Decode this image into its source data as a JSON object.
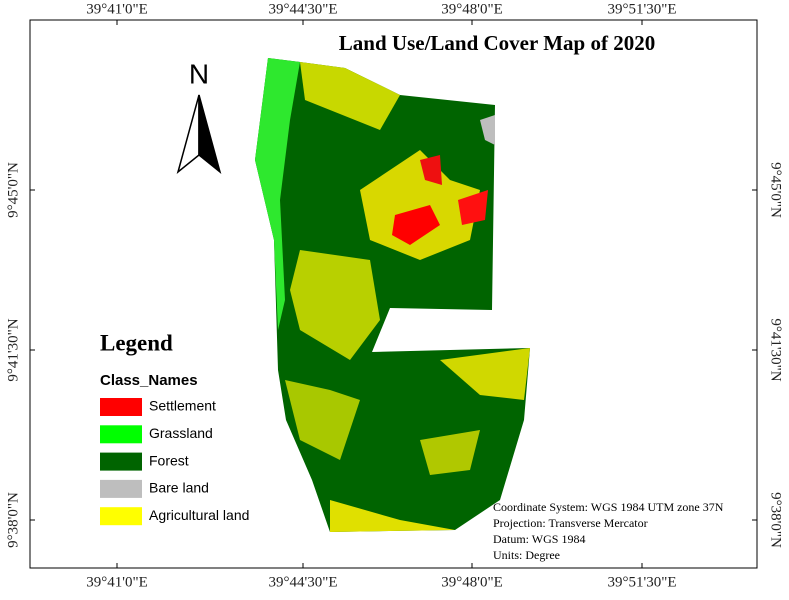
{
  "map": {
    "title": "Land Use/Land Cover Map of 2020",
    "north": "N",
    "x_labels": [
      "39°41'0\"E",
      "39°44'30\"E",
      "39°48'0\"E",
      "39°51'30\"E"
    ],
    "y_labels": [
      "9°45'0\"N",
      "9°41'30\"N",
      "9°38'0\"N"
    ],
    "legend": {
      "title": "Legend",
      "subtitle": "Class_Names",
      "items": [
        {
          "label": "Settlement",
          "color": "#ff0000"
        },
        {
          "label": "Grassland",
          "color": "#00ff00"
        },
        {
          "label": "Forest",
          "color": "#006400"
        },
        {
          "label": "Bare land",
          "color": "#bebebe"
        },
        {
          "label": "Agricultural land",
          "color": "#ffff00"
        }
      ]
    },
    "info": [
      "Coordinate System: WGS 1984 UTM zone 37N",
      "Projection: Transverse Mercator",
      "Datum: WGS 1984",
      "Units: Degree"
    ]
  }
}
